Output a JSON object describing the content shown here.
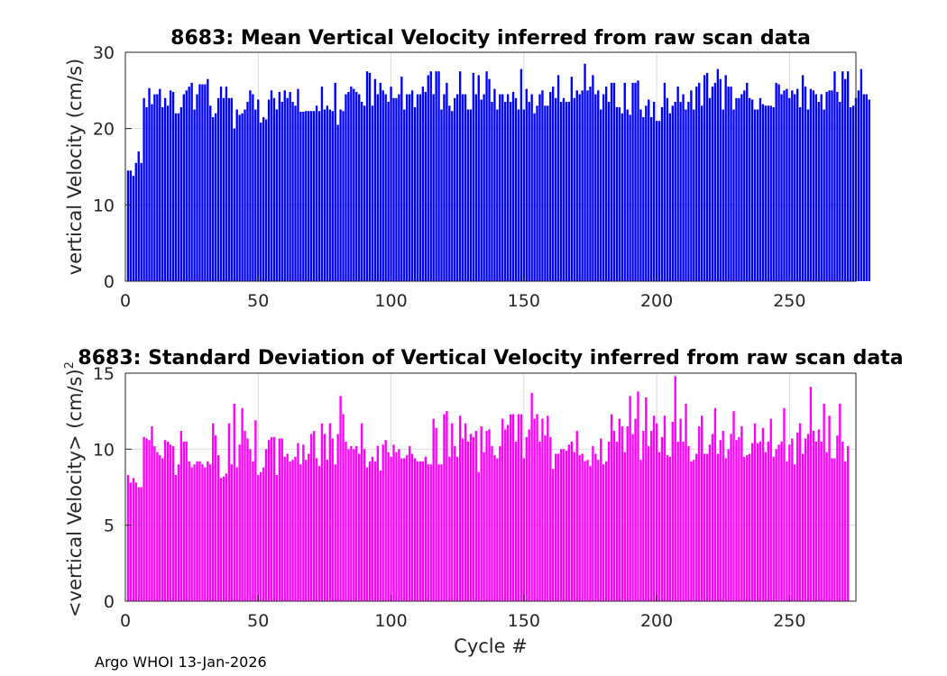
{
  "footer_text": "Argo WHOI 13-Jan-2026",
  "chart_data": [
    {
      "type": "bar",
      "title": "8683: Mean Vertical Velocity inferred from raw scan data",
      "xlabel": "",
      "ylabel": "vertical Velocity (cm/s)",
      "xlim": [
        0,
        275
      ],
      "ylim": [
        0,
        30
      ],
      "xticks": [
        0,
        50,
        100,
        150,
        200,
        250
      ],
      "yticks": [
        0,
        10,
        20,
        30
      ],
      "grid": true,
      "color": "#0000ff",
      "x_start": 1,
      "values": [
        14.5,
        14.5,
        13.8,
        15.5,
        17,
        15.5,
        24,
        22.8,
        25.3,
        23.2,
        24.5,
        24.5,
        25.2,
        22.8,
        24,
        23,
        25,
        24.8,
        22,
        22,
        22.8,
        24.5,
        25,
        25.5,
        26,
        22.5,
        24.5,
        25.8,
        25.8,
        25.8,
        26.5,
        23,
        21.5,
        22,
        24,
        25.5,
        24,
        25.5,
        24,
        24,
        20,
        22.5,
        21.8,
        22,
        22.5,
        23.5,
        25,
        24.5,
        22.5,
        23.8,
        20.8,
        21.5,
        21.2,
        23.8,
        25,
        24,
        22.5,
        24.8,
        23.5,
        25,
        24,
        24.8,
        23.5,
        23,
        25.2,
        22.2,
        22.2,
        22.3,
        22.3,
        22.3,
        22.3,
        23,
        22.3,
        25.5,
        22.5,
        23,
        22.5,
        22.3,
        26,
        20.5,
        22.5,
        22.3,
        24.5,
        24.8,
        25.5,
        25.2,
        24.8,
        24.5,
        23.5,
        23,
        27.5,
        27.3,
        23,
        26.5,
        24.5,
        26,
        25,
        24.5,
        23.5,
        25.5,
        24,
        24,
        24.5,
        26.8,
        22.5,
        24.5,
        24.5,
        25,
        22.8,
        24.5,
        24.5,
        25.5,
        24.8,
        27,
        27.5,
        24.5,
        27.5,
        27.5,
        22.5,
        24.5,
        26,
        23,
        22.3,
        24,
        24.5,
        27.5,
        24.5,
        24.5,
        22.5,
        22.5,
        27.3,
        24.5,
        27,
        23.8,
        24.5,
        27.5,
        26.5,
        23.5,
        25.2,
        22.5,
        24.5,
        24.5,
        23.5,
        24.5,
        23.5,
        24.8,
        24,
        22.5,
        27.8,
        22.5,
        25.2,
        23.5,
        24.5,
        22,
        23,
        24.5,
        25,
        23,
        23,
        24.8,
        25.5,
        24,
        27,
        23.5,
        24,
        23.5,
        23.5,
        26.8,
        24,
        25,
        24.5,
        25,
        28.5,
        25,
        25.5,
        27,
        24.5,
        25,
        22.5,
        24.5,
        25.5,
        23.5,
        26,
        26,
        22.8,
        22.8,
        22,
        26,
        22.5,
        21.8,
        26,
        26,
        26.3,
        22.5,
        21.5,
        23,
        23.8,
        21.5,
        23.5,
        21,
        21,
        22.8,
        26,
        24,
        22,
        23,
        23.5,
        25.5,
        23.5,
        24.5,
        22.5,
        23.5,
        25,
        22.5,
        25.5,
        26,
        23,
        27,
        27.3,
        24,
        25.5,
        26,
        27.8,
        26.5,
        22.5,
        27,
        25.5,
        25.5,
        22.5,
        24,
        24,
        24.5,
        25,
        26,
        24,
        23.8,
        22.5,
        22.5,
        24,
        23.2,
        23,
        23,
        23,
        22.8,
        26,
        25.8,
        24.5,
        25,
        25.2,
        24,
        25,
        24.5,
        25.2,
        22.8,
        27,
        25.5,
        22.5,
        25.2,
        25,
        24.5,
        23.5,
        24.5,
        22.5,
        24.8,
        25,
        25,
        27.5,
        24.8,
        23.5,
        27.5,
        26.5,
        27.5,
        22.8,
        23,
        24,
        25,
        27.8,
        24.5,
        24.5,
        23.8
      ]
    },
    {
      "type": "bar",
      "title": "8683: Standard Deviation of Vertical Velocity inferred from raw scan data",
      "xlabel": "Cycle #",
      "ylabel": "<vertical Velocity> (cm/s)",
      "ylabel_superscript": "2",
      "xlim": [
        0,
        275
      ],
      "ylim": [
        0,
        15
      ],
      "xticks": [
        0,
        50,
        100,
        150,
        200,
        250
      ],
      "yticks": [
        0,
        5,
        10,
        15
      ],
      "grid": true,
      "color": "#ff00ff",
      "x_start": 1,
      "values": [
        8.3,
        7.8,
        8.1,
        7.8,
        7.5,
        7.5,
        10.8,
        10.7,
        10.6,
        11.5,
        10.2,
        9.8,
        9.6,
        9.4,
        10.6,
        10.5,
        10.3,
        10.2,
        8.3,
        9,
        11.2,
        10.5,
        10.5,
        9.2,
        8.8,
        9,
        9.2,
        9.2,
        9,
        8.8,
        9.2,
        9,
        11.7,
        10.9,
        9.6,
        8.1,
        8.2,
        8.4,
        11.7,
        9,
        13,
        8.8,
        10.3,
        12.7,
        11.2,
        10.7,
        10,
        9.2,
        11.9,
        8.3,
        8.5,
        8.8,
        10,
        10.6,
        10.8,
        10.8,
        8.3,
        10.7,
        10.7,
        9.5,
        9.7,
        9.2,
        9.3,
        9.5,
        10.4,
        9,
        10.3,
        9.3,
        9.7,
        11,
        11.2,
        9.4,
        8.9,
        11.7,
        11,
        9.3,
        11.7,
        10.7,
        9,
        11,
        13.5,
        12.3,
        10.5,
        10,
        10.2,
        10,
        10.2,
        9.7,
        11.7,
        10,
        8.8,
        9.2,
        9.5,
        9.2,
        10.2,
        8.6,
        10.3,
        10.6,
        9.8,
        9.5,
        10.3,
        9.8,
        10,
        9.4,
        9.4,
        9.6,
        10.2,
        9.7,
        9.4,
        9.2,
        9.2,
        9.2,
        9.5,
        9,
        9,
        12,
        11.4,
        9,
        9,
        12.3,
        12.5,
        9.5,
        11.7,
        10.2,
        9.5,
        12.2,
        10.7,
        11.7,
        10.5,
        11,
        10.8,
        11.2,
        8.5,
        11.5,
        9.8,
        11.2,
        11.3,
        10.2,
        9.6,
        9.4,
        10.2,
        12,
        11.3,
        11.6,
        12.3,
        12.3,
        10.5,
        12.3,
        12.3,
        9.4,
        10.8,
        11.3,
        13.7,
        12,
        12.3,
        10.5,
        12,
        10.9,
        12.2,
        10.8,
        8.7,
        9.7,
        9.7,
        10,
        10,
        9.9,
        10.3,
        10.5,
        9.8,
        11.2,
        9.6,
        9.7,
        9.2,
        9.3,
        8.9,
        10.2,
        9.7,
        9.3,
        10.7,
        9,
        9.2,
        10.5,
        12.3,
        11.2,
        10.5,
        12,
        11.5,
        9.8,
        11.5,
        13.5,
        11,
        12,
        13.8,
        9.3,
        11.2,
        13.4,
        10.2,
        11.2,
        12.2,
        11.7,
        9.8,
        10.8,
        12.2,
        9.6,
        9.5,
        11.8,
        14.8,
        10.5,
        12,
        10.5,
        13,
        10.2,
        9.2,
        9.3,
        9.7,
        11.5,
        12.2,
        9.7,
        9.7,
        10.3,
        11,
        12.7,
        9.7,
        10.6,
        11.2,
        9.4,
        10,
        11,
        12.5,
        10.6,
        10.8,
        11.5,
        9.5,
        9.6,
        9.7,
        10.4,
        11.7,
        10.4,
        10.5,
        11.4,
        9.8,
        10.5,
        12,
        9.5,
        10,
        10.3,
        10.5,
        12.7,
        9.2,
        10.3,
        10.7,
        9,
        11.1,
        11.7,
        9.7,
        10.7,
        11,
        14.1,
        11.2,
        10.5,
        11.3,
        10.5,
        13,
        9.8,
        12.2,
        9.4,
        9.4,
        10.9,
        13,
        10.5,
        9.2,
        10.2
      ]
    }
  ]
}
